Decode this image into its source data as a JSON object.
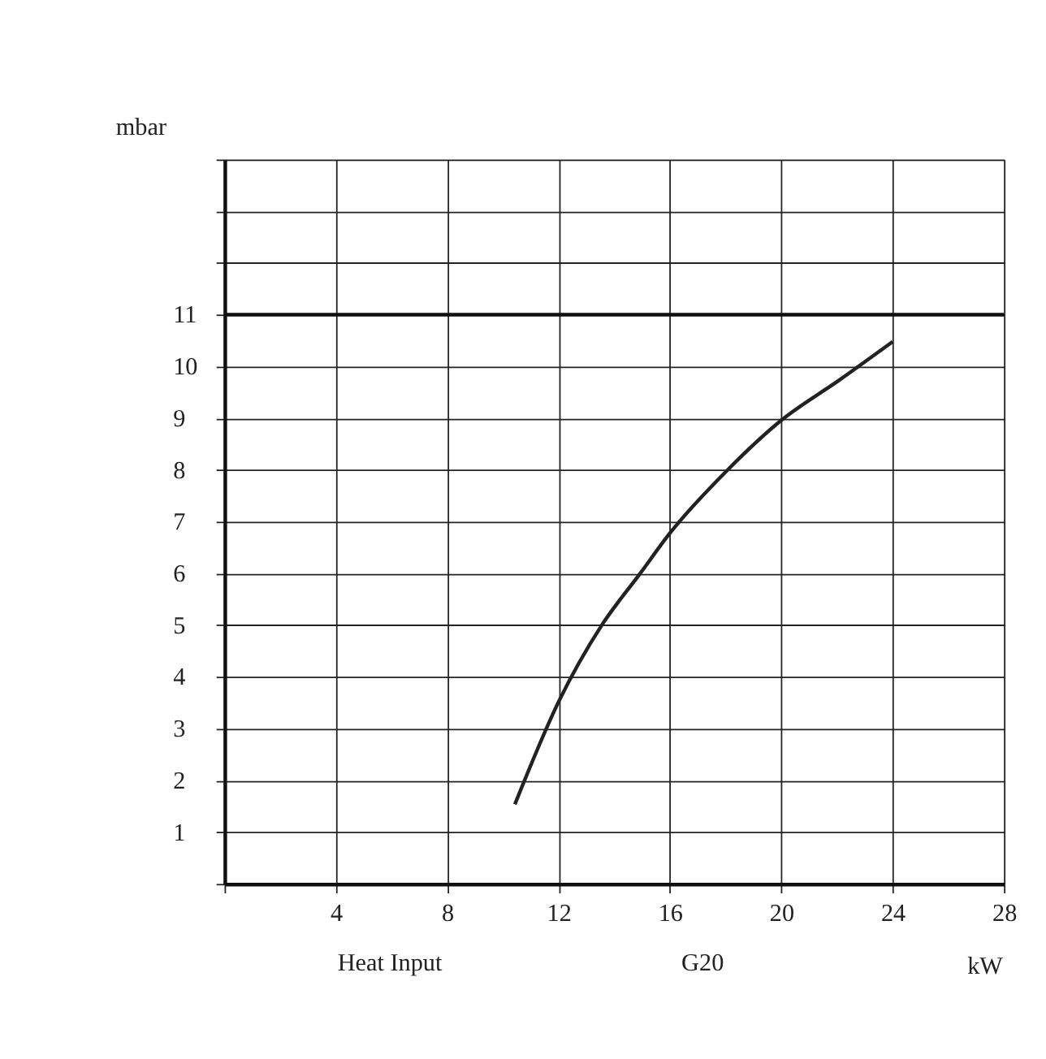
{
  "chart_data": {
    "type": "line",
    "ylabel": "mbar",
    "xlabel": "Heat Input",
    "annotations": [
      "G20",
      "kW"
    ],
    "xlim": [
      0,
      28
    ],
    "ylim": [
      0,
      14
    ],
    "xticks": [
      {
        "value": 0,
        "label": null
      },
      4,
      8,
      12,
      16,
      20,
      24,
      28
    ],
    "yticks": [
      {
        "value": 0,
        "label": null
      },
      1,
      2,
      3,
      4,
      5,
      6,
      7,
      8,
      9,
      10,
      11,
      {
        "value": 12,
        "label": null
      },
      {
        "value": 13,
        "label": null
      },
      {
        "value": 14,
        "label": null
      }
    ],
    "grid": true,
    "marker": "none",
    "line_style": "solid",
    "ref_lines": [
      {
        "axis": "y",
        "value": 11
      }
    ],
    "series": [
      {
        "color": "#222222",
        "x": [
          10.43,
          12.0,
          13.55,
          14.93,
          16.0,
          18.07,
          20.0,
          22.09,
          24.0
        ],
        "values": [
          1.54,
          3.52,
          5.0,
          6.0,
          6.78,
          8.0,
          8.96,
          9.74,
          10.48
        ]
      }
    ]
  }
}
